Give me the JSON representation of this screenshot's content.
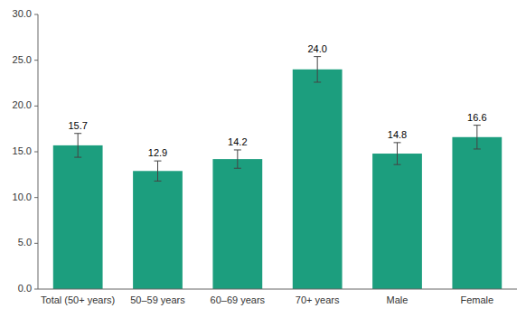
{
  "chart_data": {
    "type": "bar",
    "categories": [
      "Total (50+ years)",
      "50–59 years",
      "60–69 years",
      "70+ years",
      "Male",
      "Female"
    ],
    "values": [
      15.7,
      12.9,
      14.2,
      24.0,
      14.8,
      16.6
    ],
    "errors": [
      1.3,
      1.1,
      1.0,
      1.4,
      1.2,
      1.3
    ],
    "value_labels": [
      "15.7",
      "12.9",
      "14.2",
      "24.0",
      "14.8",
      "16.6"
    ],
    "color": "#1c9e7e",
    "ylim": [
      0,
      30
    ],
    "yticks": [
      {
        "value": 0,
        "label": "0.0"
      },
      {
        "value": 5,
        "label": "5.0"
      },
      {
        "value": 10,
        "label": "10.0"
      },
      {
        "value": 15,
        "label": "15.0"
      },
      {
        "value": 20,
        "label": "20.0"
      },
      {
        "value": 25,
        "label": "25.0"
      },
      {
        "value": 30,
        "label": "30.0"
      }
    ],
    "grid": false,
    "data_labels": true
  }
}
